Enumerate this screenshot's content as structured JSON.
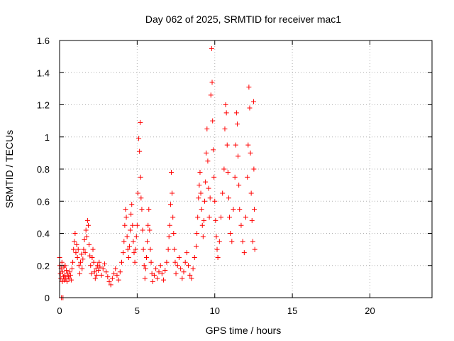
{
  "chart_data": {
    "type": "scatter",
    "title": "Day 062 of 2025, SRMTID for receiver mac1",
    "xlabel": "GPS time / hours",
    "ylabel": "SRMTID / TECUs",
    "xlim": [
      0,
      24
    ],
    "ylim": [
      0,
      1.6
    ],
    "xticks": [
      0,
      5,
      10,
      15,
      20
    ],
    "xtick_labels": [
      "0",
      "5",
      "10",
      "15",
      "20"
    ],
    "yticks": [
      0,
      0.2,
      0.4,
      0.6,
      0.8,
      1.0,
      1.2,
      1.4,
      1.6
    ],
    "ytick_labels": [
      "0",
      "0.2",
      "0.4",
      "0.6",
      "0.8",
      "1",
      "1.2",
      "1.4",
      "1.6"
    ],
    "grid": true,
    "marker": "+",
    "color": "#ff0000",
    "series": [
      {
        "name": "SRMTID",
        "points": [
          [
            0.0,
            0.25
          ],
          [
            0.02,
            0.2
          ],
          [
            0.05,
            0.15
          ],
          [
            0.08,
            0.12
          ],
          [
            0.1,
            0.18
          ],
          [
            0.12,
            0.0
          ],
          [
            0.15,
            0.22
          ],
          [
            0.18,
            0.1
          ],
          [
            0.2,
            0.16
          ],
          [
            0.22,
            0.0
          ],
          [
            0.25,
            0.13
          ],
          [
            0.28,
            0.19
          ],
          [
            0.3,
            0.11
          ],
          [
            0.33,
            0.14
          ],
          [
            0.36,
            0.2
          ],
          [
            0.4,
            0.12
          ],
          [
            0.44,
            0.17
          ],
          [
            0.48,
            0.1
          ],
          [
            0.52,
            0.15
          ],
          [
            0.56,
            0.13
          ],
          [
            0.6,
            0.12
          ],
          [
            0.65,
            0.16
          ],
          [
            0.7,
            0.14
          ],
          [
            0.75,
            0.11
          ],
          [
            0.8,
            0.18
          ],
          [
            0.85,
            0.22
          ],
          [
            0.9,
            0.3
          ],
          [
            0.95,
            0.35
          ],
          [
            1.0,
            0.4
          ],
          [
            1.05,
            0.28
          ],
          [
            1.1,
            0.33
          ],
          [
            1.15,
            0.25
          ],
          [
            1.2,
            0.3
          ],
          [
            1.25,
            0.2
          ],
          [
            1.3,
            0.15
          ],
          [
            1.35,
            0.22
          ],
          [
            1.4,
            0.27
          ],
          [
            1.45,
            0.18
          ],
          [
            1.5,
            0.24
          ],
          [
            1.55,
            0.3
          ],
          [
            1.6,
            0.36
          ],
          [
            1.65,
            0.28
          ],
          [
            1.7,
            0.42
          ],
          [
            1.75,
            0.38
          ],
          [
            1.8,
            0.48
          ],
          [
            1.85,
            0.45
          ],
          [
            1.9,
            0.33
          ],
          [
            1.95,
            0.26
          ],
          [
            2.0,
            0.2
          ],
          [
            2.05,
            0.15
          ],
          [
            2.1,
            0.25
          ],
          [
            2.15,
            0.3
          ],
          [
            2.2,
            0.22
          ],
          [
            2.25,
            0.16
          ],
          [
            2.3,
            0.12
          ],
          [
            2.35,
            0.18
          ],
          [
            2.4,
            0.14
          ],
          [
            2.45,
            0.2
          ],
          [
            2.5,
            0.17
          ],
          [
            2.55,
            0.22
          ],
          [
            2.6,
            0.19
          ],
          [
            2.7,
            0.14
          ],
          [
            2.8,
            0.18
          ],
          [
            2.9,
            0.21
          ],
          [
            3.0,
            0.16
          ],
          [
            3.1,
            0.13
          ],
          [
            3.2,
            0.1
          ],
          [
            3.3,
            0.08
          ],
          [
            3.4,
            0.12
          ],
          [
            3.5,
            0.15
          ],
          [
            3.6,
            0.18
          ],
          [
            3.7,
            0.14
          ],
          [
            3.8,
            0.11
          ],
          [
            3.9,
            0.16
          ],
          [
            4.0,
            0.22
          ],
          [
            4.1,
            0.28
          ],
          [
            4.15,
            0.35
          ],
          [
            4.2,
            0.45
          ],
          [
            4.25,
            0.55
          ],
          [
            4.3,
            0.5
          ],
          [
            4.35,
            0.38
          ],
          [
            4.4,
            0.3
          ],
          [
            4.45,
            0.25
          ],
          [
            4.5,
            0.32
          ],
          [
            4.55,
            0.42
          ],
          [
            4.6,
            0.52
          ],
          [
            4.65,
            0.58
          ],
          [
            4.7,
            0.45
          ],
          [
            4.75,
            0.35
          ],
          [
            4.8,
            0.28
          ],
          [
            4.85,
            0.22
          ],
          [
            4.9,
            0.3
          ],
          [
            4.95,
            0.38
          ],
          [
            5.0,
            0.45
          ],
          [
            5.05,
            0.65
          ],
          [
            5.1,
            0.99
          ],
          [
            5.15,
            0.91
          ],
          [
            5.2,
            1.09
          ],
          [
            5.22,
            0.75
          ],
          [
            5.25,
            0.62
          ],
          [
            5.3,
            0.55
          ],
          [
            5.35,
            0.42
          ],
          [
            5.4,
            0.3
          ],
          [
            5.45,
            0.2
          ],
          [
            5.5,
            0.12
          ],
          [
            5.55,
            0.18
          ],
          [
            5.6,
            0.25
          ],
          [
            5.65,
            0.35
          ],
          [
            5.7,
            0.45
          ],
          [
            5.75,
            0.55
          ],
          [
            5.8,
            0.42
          ],
          [
            5.85,
            0.3
          ],
          [
            5.9,
            0.22
          ],
          [
            5.95,
            0.15
          ],
          [
            6.0,
            0.1
          ],
          [
            6.1,
            0.14
          ],
          [
            6.2,
            0.18
          ],
          [
            6.3,
            0.12
          ],
          [
            6.4,
            0.16
          ],
          [
            6.5,
            0.2
          ],
          [
            6.6,
            0.15
          ],
          [
            6.7,
            0.11
          ],
          [
            6.8,
            0.17
          ],
          [
            6.9,
            0.22
          ],
          [
            7.0,
            0.3
          ],
          [
            7.05,
            0.38
          ],
          [
            7.1,
            0.45
          ],
          [
            7.15,
            0.58
          ],
          [
            7.2,
            0.78
          ],
          [
            7.25,
            0.65
          ],
          [
            7.3,
            0.5
          ],
          [
            7.35,
            0.4
          ],
          [
            7.4,
            0.3
          ],
          [
            7.45,
            0.22
          ],
          [
            7.5,
            0.15
          ],
          [
            7.6,
            0.2
          ],
          [
            7.7,
            0.25
          ],
          [
            7.8,
            0.18
          ],
          [
            7.9,
            0.12
          ],
          [
            8.0,
            0.16
          ],
          [
            8.1,
            0.22
          ],
          [
            8.2,
            0.28
          ],
          [
            8.3,
            0.2
          ],
          [
            8.4,
            0.14
          ],
          [
            8.5,
            0.12
          ],
          [
            8.6,
            0.18
          ],
          [
            8.7,
            0.25
          ],
          [
            8.8,
            0.32
          ],
          [
            8.85,
            0.4
          ],
          [
            8.9,
            0.5
          ],
          [
            8.95,
            0.62
          ],
          [
            9.0,
            0.7
          ],
          [
            9.05,
            0.78
          ],
          [
            9.1,
            0.65
          ],
          [
            9.15,
            0.55
          ],
          [
            9.2,
            0.45
          ],
          [
            9.25,
            0.38
          ],
          [
            9.3,
            0.48
          ],
          [
            9.35,
            0.6
          ],
          [
            9.4,
            0.72
          ],
          [
            9.45,
            0.9
          ],
          [
            9.5,
            1.05
          ],
          [
            9.55,
            0.85
          ],
          [
            9.6,
            0.68
          ],
          [
            9.65,
            0.5
          ],
          [
            9.7,
            0.62
          ],
          [
            9.75,
            1.26
          ],
          [
            9.8,
            1.55
          ],
          [
            9.83,
            1.34
          ],
          [
            9.86,
            1.1
          ],
          [
            9.9,
            0.92
          ],
          [
            9.95,
            0.75
          ],
          [
            10.0,
            0.6
          ],
          [
            10.05,
            0.48
          ],
          [
            10.1,
            0.38
          ],
          [
            10.15,
            0.3
          ],
          [
            10.2,
            0.25
          ],
          [
            10.3,
            0.35
          ],
          [
            10.4,
            0.5
          ],
          [
            10.5,
            0.65
          ],
          [
            10.6,
            0.8
          ],
          [
            10.65,
            1.05
          ],
          [
            10.7,
            1.2
          ],
          [
            10.75,
            1.15
          ],
          [
            10.8,
            0.95
          ],
          [
            10.85,
            0.78
          ],
          [
            10.9,
            0.62
          ],
          [
            10.95,
            0.5
          ],
          [
            11.0,
            0.4
          ],
          [
            11.1,
            0.35
          ],
          [
            11.2,
            0.55
          ],
          [
            11.3,
            0.75
          ],
          [
            11.35,
            0.95
          ],
          [
            11.4,
            1.15
          ],
          [
            11.45,
            1.08
          ],
          [
            11.5,
            0.88
          ],
          [
            11.55,
            0.7
          ],
          [
            11.6,
            0.55
          ],
          [
            11.7,
            0.45
          ],
          [
            11.8,
            0.35
          ],
          [
            11.9,
            0.28
          ],
          [
            12.0,
            0.5
          ],
          [
            12.1,
            0.75
          ],
          [
            12.15,
            0.95
          ],
          [
            12.2,
            1.31
          ],
          [
            12.25,
            1.18
          ],
          [
            12.3,
            0.9
          ],
          [
            12.35,
            0.65
          ],
          [
            12.4,
            0.48
          ],
          [
            12.45,
            0.35
          ],
          [
            12.5,
            1.22
          ],
          [
            12.52,
            0.8
          ],
          [
            12.55,
            0.55
          ],
          [
            12.58,
            0.3
          ]
        ]
      }
    ]
  }
}
